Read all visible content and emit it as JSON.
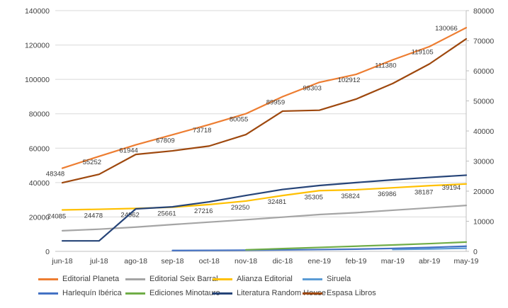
{
  "chart_data": {
    "type": "line",
    "title": "",
    "grid": true,
    "legend_position": "bottom",
    "categories": [
      "jun-18",
      "jul-18",
      "ago-18",
      "sep-18",
      "oct-18",
      "nov-18",
      "dic-18",
      "ene-19",
      "feb-19",
      "mar-19",
      "abr-19",
      "may-19"
    ],
    "left_axis": {
      "min": 0,
      "max": 140000,
      "ticks": [
        0,
        20000,
        40000,
        60000,
        80000,
        100000,
        120000,
        140000
      ]
    },
    "right_axis": {
      "min": 0,
      "max": 80000,
      "ticks": [
        0,
        10000,
        20000,
        30000,
        40000,
        50000,
        60000,
        70000,
        80000
      ]
    },
    "series": [
      {
        "name": "Editorial Planeta",
        "color": "#ED7D31",
        "axis": "left",
        "data_labels": true,
        "values": [
          48348,
          55252,
          61944,
          67809,
          73718,
          80055,
          89959,
          98303,
          102912,
          111380,
          119105,
          130066
        ]
      },
      {
        "name": "Editorial Seix Barral",
        "color": "#A5A5A5",
        "axis": "left",
        "data_labels": false,
        "values": [
          12000,
          12900,
          14100,
          15600,
          17000,
          18400,
          19900,
          21400,
          22500,
          23900,
          25300,
          26700
        ]
      },
      {
        "name": "Alianza Editorial",
        "color": "#FFC000",
        "axis": "left",
        "data_labels": true,
        "values": [
          24085,
          24478,
          24962,
          25661,
          27216,
          29250,
          32481,
          35305,
          35824,
          36986,
          38187,
          39194
        ]
      },
      {
        "name": "Siruela",
        "color": "#5B9BD5",
        "axis": "left",
        "data_labels": false,
        "values": [
          null,
          null,
          null,
          null,
          null,
          null,
          null,
          null,
          null,
          1100,
          1400,
          1800
        ]
      },
      {
        "name": "Harlequín Ibérica",
        "color": "#4472C4",
        "axis": "left",
        "data_labels": false,
        "values": [
          null,
          null,
          null,
          500,
          600,
          700,
          850,
          1050,
          1300,
          1700,
          2300,
          3000
        ]
      },
      {
        "name": "Ediciones Minotauro",
        "color": "#70AD47",
        "axis": "left",
        "data_labels": false,
        "values": [
          null,
          null,
          null,
          null,
          null,
          900,
          1600,
          2300,
          3000,
          3700,
          4500,
          5400
        ]
      },
      {
        "name": "Literatura Random House",
        "color": "#264478",
        "axis": "left",
        "data_labels": false,
        "values": [
          6100,
          6100,
          24700,
          25900,
          28800,
          32500,
          36000,
          38300,
          40000,
          41600,
          43000,
          44300
        ]
      },
      {
        "name": "Espasa Libros",
        "color": "#9E480E",
        "axis": "right",
        "data_labels": false,
        "values": [
          22800,
          25600,
          32200,
          33400,
          35000,
          38800,
          46600,
          46900,
          50600,
          55800,
          62300,
          70600
        ]
      }
    ]
  },
  "colors": {
    "background": "#FFFFFF",
    "gridline": "#D9D9D9",
    "axis_line": "#BFBFBF",
    "axis_text": "#404040",
    "data_label_text": "#3A3A3A"
  }
}
